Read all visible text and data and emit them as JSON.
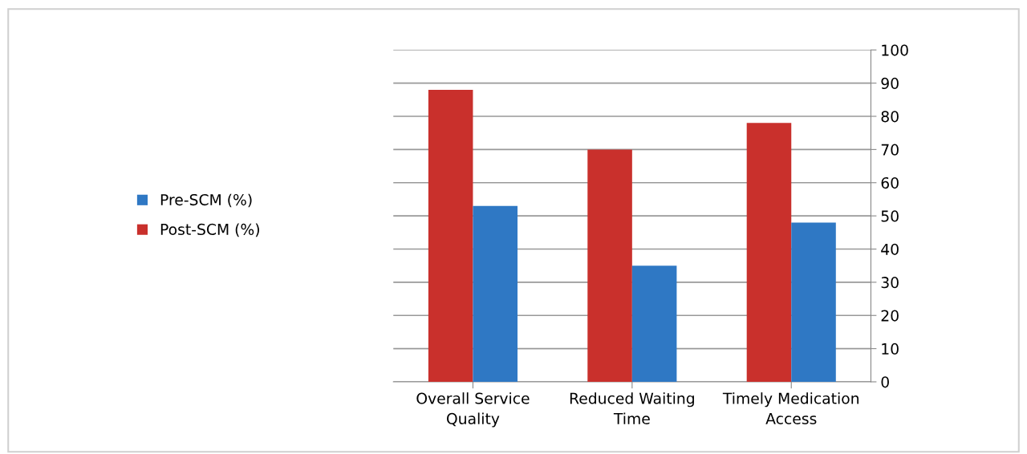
{
  "chart_data": {
    "type": "bar",
    "categories": [
      "Overall Service Quality",
      "Reduced Waiting Time",
      "Timely Medication Access"
    ],
    "series": [
      {
        "name": "Post-SCM (%)",
        "color": "#c9302c",
        "values": [
          88,
          70,
          78
        ]
      },
      {
        "name": "Pre-SCM (%)",
        "color": "#2f78c4",
        "values": [
          53,
          35,
          48
        ]
      }
    ],
    "ylim": [
      0,
      100
    ],
    "yticks": [
      0,
      10,
      20,
      30,
      40,
      50,
      60,
      70,
      80,
      90,
      100
    ],
    "grid": "y",
    "legend": "left"
  }
}
